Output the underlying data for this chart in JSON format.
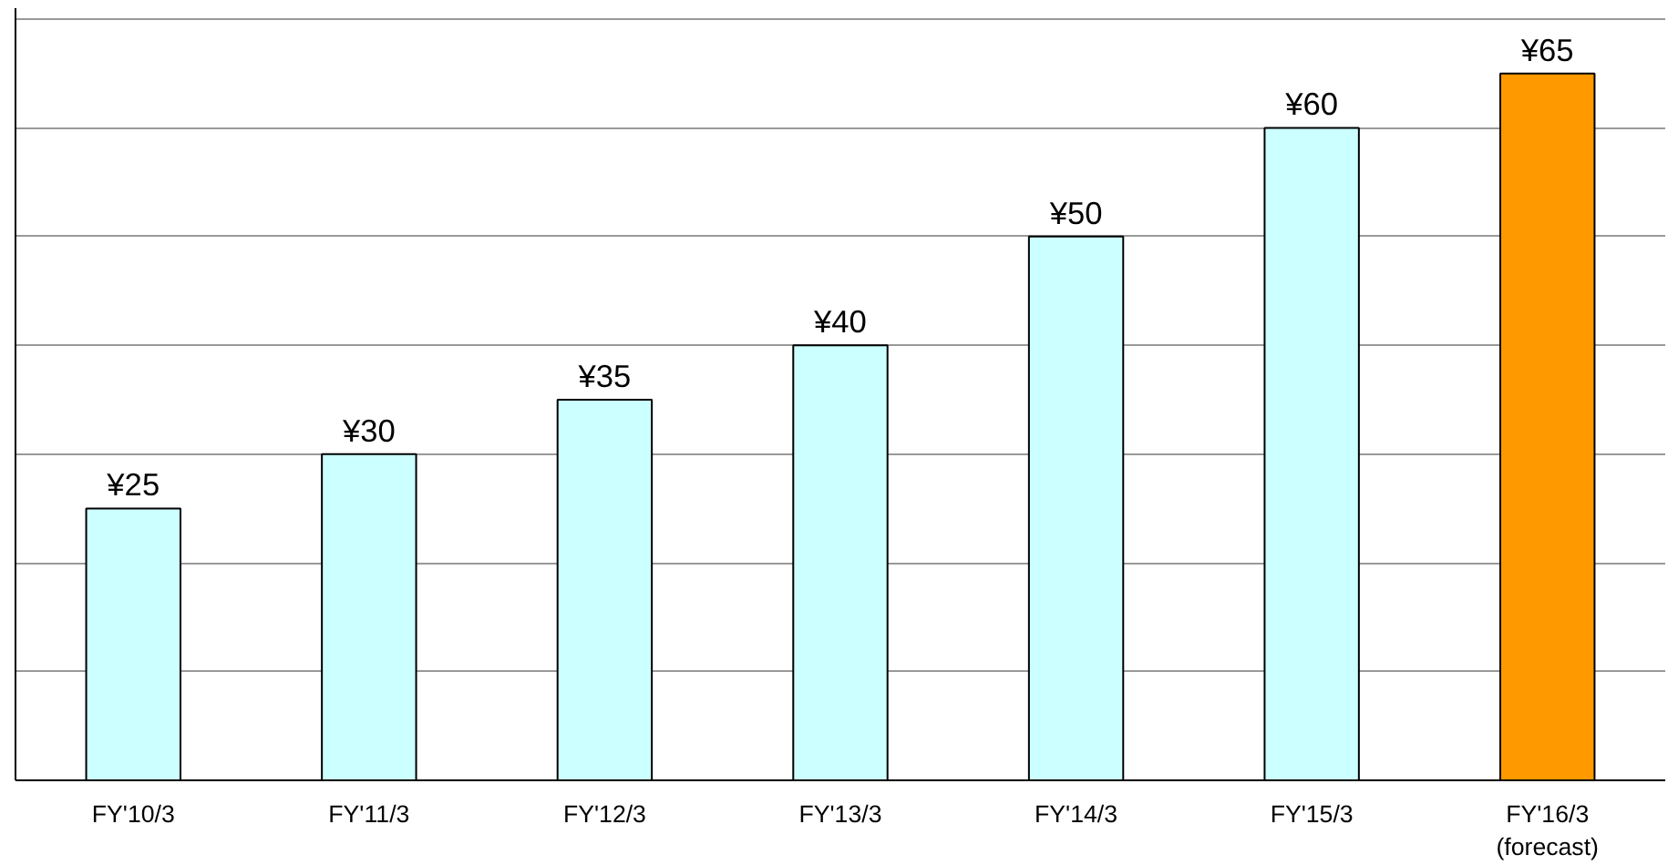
{
  "chart_data": {
    "type": "bar",
    "categories": [
      "FY'10/3",
      "FY'11/3",
      "FY'12/3",
      "FY'13/3",
      "FY'14/3",
      "FY'15/3",
      "FY'16/3\n(forecast)"
    ],
    "values": [
      25,
      30,
      35,
      40,
      50,
      60,
      65
    ],
    "colors": [
      "#ccffff",
      "#ccffff",
      "#ccffff",
      "#ccffff",
      "#ccffff",
      "#ccffff",
      "#ff9900"
    ],
    "value_labels": [
      "¥25",
      "¥30",
      "¥35",
      "¥40",
      "¥50",
      "¥60",
      "¥65"
    ],
    "ylim": [
      0,
      71
    ],
    "yticks": [
      {
        "value": 0,
        "label": null
      },
      {
        "value": 10,
        "label": null
      },
      {
        "value": 20,
        "label": null
      },
      {
        "value": 30,
        "label": null
      },
      {
        "value": 40,
        "label": null
      },
      {
        "value": 50,
        "label": null
      },
      {
        "value": 60,
        "label": null
      },
      {
        "value": 70,
        "label": null
      }
    ],
    "grid": "y",
    "tick_labels": "x"
  }
}
